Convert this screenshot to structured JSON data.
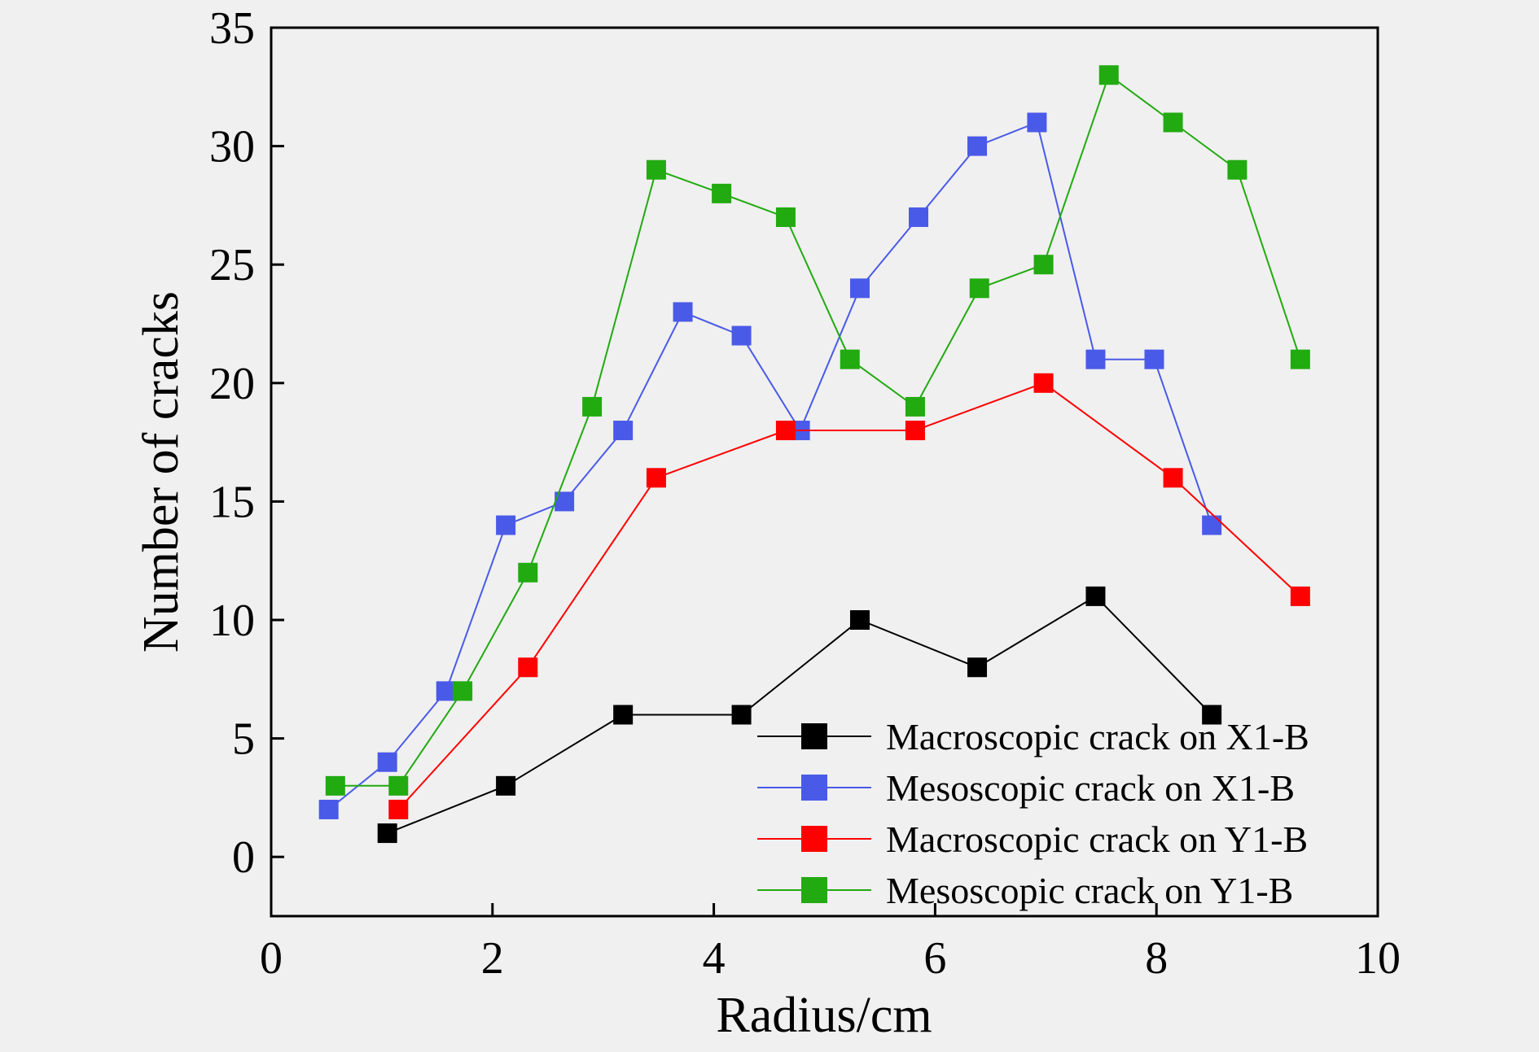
{
  "chart_data": {
    "type": "line",
    "title": "",
    "xlabel": "Radius/cm",
    "ylabel": "Number of cracks",
    "xlim": [
      0,
      10
    ],
    "ylim": [
      -2.5,
      35
    ],
    "x_ticks": [
      "0",
      "2",
      "4",
      "6",
      "8",
      "10"
    ],
    "y_ticks": [
      "0",
      "5",
      "10",
      "15",
      "20",
      "25",
      "30",
      "35"
    ],
    "grid": false,
    "legend_position": "bottom-right",
    "marker": "square",
    "series": [
      {
        "name": "Macroscopic crack on X1-B",
        "color": "#000000",
        "x": [
          1.05,
          2.12,
          3.18,
          4.25,
          5.32,
          6.38,
          7.45,
          8.5
        ],
        "y": [
          1,
          3,
          6,
          6,
          10,
          8,
          11,
          6
        ]
      },
      {
        "name": "Mesoscopic crack on X1-B",
        "color": "#4a5ae8",
        "x": [
          0.52,
          1.05,
          1.58,
          2.12,
          2.65,
          3.18,
          3.72,
          4.25,
          4.78,
          5.32,
          5.85,
          6.38,
          6.92,
          7.45,
          7.98,
          8.5
        ],
        "y": [
          2,
          4,
          7,
          14,
          15,
          18,
          23,
          22,
          18,
          24,
          27,
          30,
          31,
          21,
          21,
          14
        ]
      },
      {
        "name": "Macroscopic crack on Y1-B",
        "color": "#ff0000",
        "x": [
          1.15,
          2.32,
          3.48,
          4.65,
          5.82,
          6.98,
          8.15,
          9.3
        ],
        "y": [
          2,
          8,
          16,
          18,
          18,
          20,
          16,
          11
        ]
      },
      {
        "name": "Mesoscopic crack on Y1-B",
        "color": "#22aa11",
        "x": [
          0.58,
          1.15,
          1.73,
          2.32,
          2.9,
          3.48,
          4.07,
          4.65,
          5.23,
          5.82,
          6.4,
          6.98,
          7.57,
          8.15,
          8.73,
          9.3
        ],
        "y": [
          3,
          3,
          7,
          12,
          19,
          29,
          28,
          27,
          21,
          19,
          24,
          25,
          33,
          31,
          29,
          21
        ]
      }
    ]
  }
}
